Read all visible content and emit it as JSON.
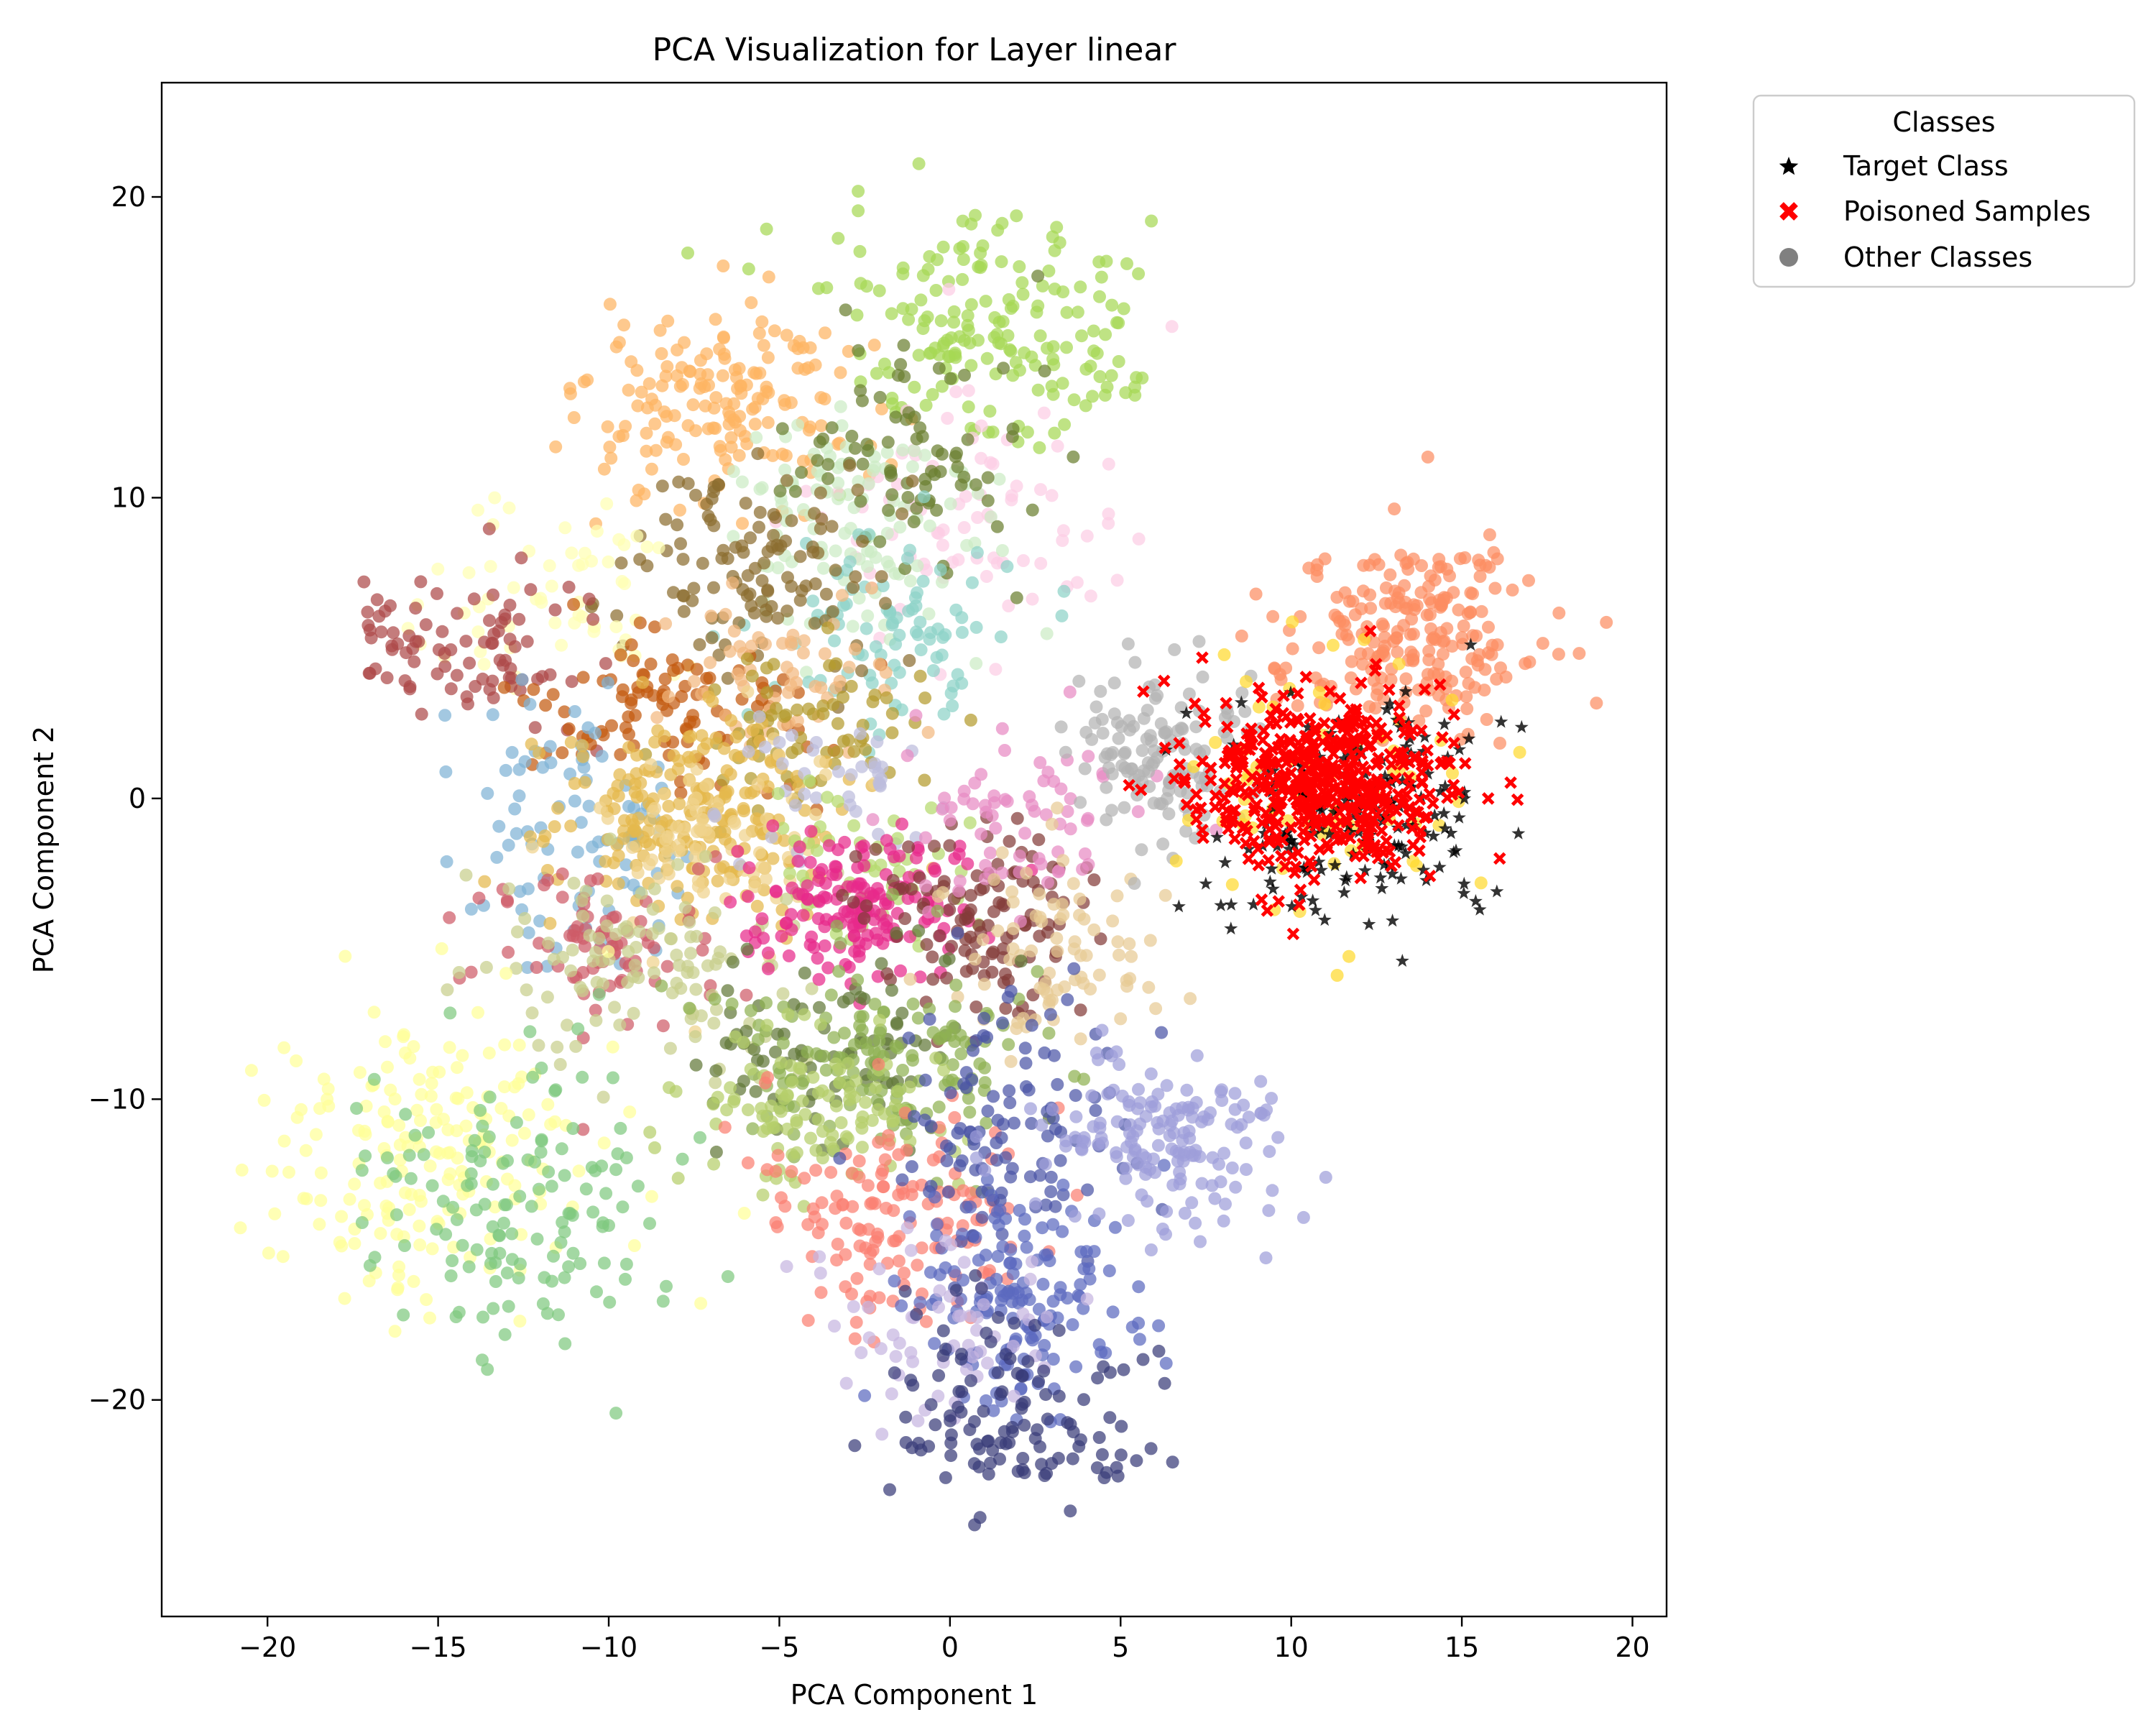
{
  "chart_data": {
    "type": "scatter",
    "title": "PCA Visualization for Layer linear",
    "xlabel": "PCA Component 1",
    "ylabel": "PCA Component 2",
    "xlim": [
      -23.1,
      21.0
    ],
    "ylim": [
      -27.2,
      23.8
    ],
    "x_ticks": [
      -20,
      -15,
      -10,
      -5,
      0,
      5,
      10,
      15,
      20
    ],
    "x_tick_labels": [
      "−20",
      "−15",
      "−10",
      "−5",
      "0",
      "5",
      "10",
      "15",
      "20"
    ],
    "y_ticks": [
      -20,
      -10,
      0,
      10,
      20
    ],
    "y_tick_labels": [
      "−20",
      "−10",
      "0",
      "10",
      "20"
    ],
    "grid": false,
    "legend": {
      "title": "Classes",
      "placement": "outside-top-right",
      "entries": [
        {
          "label": "Target Class",
          "marker": "star",
          "color": "#000000"
        },
        {
          "label": "Poisoned Samples",
          "marker": "x",
          "color": "#ff0000"
        },
        {
          "label": "Other Classes",
          "marker": "circle",
          "color": "#808080"
        }
      ]
    },
    "clusters": [
      {
        "color": "#fdb462",
        "cx": -6.6,
        "cy": 12.9,
        "sx": 2.1,
        "sy": 1.8,
        "n": 170
      },
      {
        "color": "#a6d854",
        "cx": 1.1,
        "cy": 15.5,
        "sx": 2.2,
        "sy": 1.8,
        "n": 180
      },
      {
        "color": "#fccde5",
        "cx": 0.8,
        "cy": 9.0,
        "sx": 2.3,
        "sy": 2.4,
        "n": 80
      },
      {
        "color": "#ccebc5",
        "cx": -2.8,
        "cy": 9.2,
        "sx": 2.1,
        "sy": 2.0,
        "n": 110
      },
      {
        "color": "#6b7f30",
        "cx": -1.2,
        "cy": 11.5,
        "sx": 1.7,
        "sy": 2.0,
        "n": 80
      },
      {
        "color": "#8dd3c7",
        "cx": -2.0,
        "cy": 5.6,
        "sx": 1.7,
        "sy": 1.4,
        "n": 90
      },
      {
        "color": "#8c6d31",
        "cx": -5.8,
        "cy": 7.5,
        "sx": 1.9,
        "sy": 1.8,
        "n": 120
      },
      {
        "color": "#ffffb3",
        "cx": -10.8,
        "cy": 6.8,
        "sx": 1.8,
        "sy": 1.8,
        "n": 60
      },
      {
        "color": "#ad494a",
        "cx": -14.0,
        "cy": 5.3,
        "sx": 1.8,
        "sy": 1.3,
        "n": 90
      },
      {
        "color": "#c35a0f",
        "cx": -8.2,
        "cy": 3.2,
        "sx": 2.0,
        "sy": 1.4,
        "n": 100
      },
      {
        "color": "#f2b880",
        "cx": -5.0,
        "cy": 4.0,
        "sx": 1.8,
        "sy": 1.4,
        "n": 60
      },
      {
        "color": "#b49b2e",
        "cx": -4.5,
        "cy": 2.5,
        "sx": 1.8,
        "sy": 1.5,
        "n": 70
      },
      {
        "color": "#7fb3d5",
        "cx": -11.0,
        "cy": -0.8,
        "sx": 1.6,
        "sy": 2.2,
        "n": 90
      },
      {
        "color": "#e5b84c",
        "cx": -7.5,
        "cy": -0.6,
        "sx": 2.1,
        "sy": 1.9,
        "n": 220
      },
      {
        "color": "#f0d28c",
        "cx": -7.0,
        "cy": -1.2,
        "sx": 1.7,
        "sy": 1.6,
        "n": 80
      },
      {
        "color": "#bcbddc",
        "cx": -3.8,
        "cy": 0.5,
        "sx": 1.6,
        "sy": 1.3,
        "n": 40
      },
      {
        "color": "#cf5c68",
        "cx": -10.0,
        "cy": -5.0,
        "sx": 2.0,
        "sy": 1.5,
        "n": 80
      },
      {
        "color": "#c7cf8c",
        "cx": -8.5,
        "cy": -5.4,
        "sx": 2.1,
        "sy": 1.6,
        "n": 110
      },
      {
        "color": "#b6d96e",
        "cx": -3.0,
        "cy": -2.2,
        "sx": 1.6,
        "sy": 1.2,
        "n": 50
      },
      {
        "color": "#e7298a",
        "cx": -2.6,
        "cy": -3.6,
        "sx": 1.5,
        "sy": 1.2,
        "n": 170
      },
      {
        "color": "#843c39",
        "cx": 1.0,
        "cy": -4.0,
        "sx": 1.7,
        "sy": 1.6,
        "n": 120
      },
      {
        "color": "#e78ac3",
        "cx": 2.3,
        "cy": -1.0,
        "sx": 1.8,
        "sy": 1.6,
        "n": 70
      },
      {
        "color": "#e7cb94",
        "cx": 3.1,
        "cy": -5.0,
        "sx": 1.8,
        "sy": 1.6,
        "n": 80
      },
      {
        "color": "#b3b3b3",
        "cx": 6.3,
        "cy": 1.5,
        "sx": 1.4,
        "sy": 1.4,
        "n": 130
      },
      {
        "color": "#fc8d62",
        "cx": 13.4,
        "cy": 5.3,
        "sx": 2.0,
        "sy": 1.6,
        "n": 230
      },
      {
        "color": "#637939",
        "cx": -3.5,
        "cy": -8.0,
        "sx": 1.9,
        "sy": 1.4,
        "n": 90
      },
      {
        "color": "#8fb152",
        "cx": -2.0,
        "cy": -8.6,
        "sx": 2.1,
        "sy": 1.7,
        "n": 140
      },
      {
        "color": "#b5cf6b",
        "cx": -4.0,
        "cy": -10.5,
        "sx": 2.0,
        "sy": 1.4,
        "n": 110
      },
      {
        "color": "#ffff99",
        "cx": -15.5,
        "cy": -12.2,
        "sx": 2.4,
        "sy": 2.5,
        "n": 190
      },
      {
        "color": "#7fc97f",
        "cx": -12.2,
        "cy": -13.7,
        "sx": 2.2,
        "sy": 2.4,
        "n": 140
      },
      {
        "color": "#fb8072",
        "cx": -1.7,
        "cy": -13.5,
        "sx": 2.1,
        "sy": 2.0,
        "n": 140
      },
      {
        "color": "#4b55a6",
        "cx": 1.7,
        "cy": -11.0,
        "sx": 1.6,
        "sy": 2.2,
        "n": 110
      },
      {
        "color": "#5b6abf",
        "cx": 2.2,
        "cy": -16.8,
        "sx": 1.7,
        "sy": 1.9,
        "n": 150
      },
      {
        "color": "#c6b5e0",
        "cx": -0.2,
        "cy": -17.8,
        "sx": 1.8,
        "sy": 1.6,
        "n": 60
      },
      {
        "color": "#393b79",
        "cx": 1.8,
        "cy": -20.2,
        "sx": 1.9,
        "sy": 1.8,
        "n": 120
      },
      {
        "color": "#9e9ed9",
        "cx": 6.4,
        "cy": -11.4,
        "sx": 1.8,
        "sy": 1.5,
        "n": 160
      },
      {
        "color": "#ffd92f",
        "cx": 11.0,
        "cy": 0.4,
        "sx": 2.4,
        "sy": 2.3,
        "n": 70
      }
    ],
    "target_class": {
      "color": "#000000",
      "marker": "star",
      "cx": 11.8,
      "cy": -0.5,
      "sx": 2.2,
      "sy": 2.0,
      "n": 170
    },
    "poisoned_samples": {
      "color": "#ff0000",
      "marker": "x",
      "cx": 10.8,
      "cy": 0.5,
      "sx": 1.9,
      "sy": 1.4,
      "n": 500
    }
  }
}
